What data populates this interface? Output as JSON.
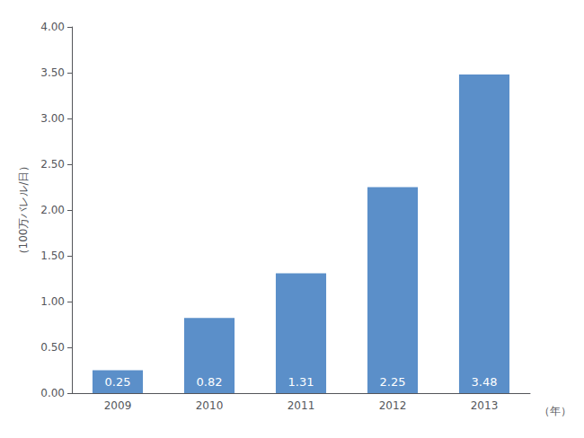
{
  "chart_data": {
    "type": "bar",
    "categories": [
      "2009",
      "2010",
      "2011",
      "2012",
      "2013"
    ],
    "values": [
      0.25,
      0.82,
      1.31,
      2.25,
      3.48
    ],
    "color": "#5b8fc9",
    "ylabel": "（100万バレル/日）",
    "xlabel": "（年）",
    "ylim": [
      0,
      4.0
    ],
    "yticks": [
      {
        "value": 0.0,
        "label": "0.00"
      },
      {
        "value": 0.5,
        "label": "0.50"
      },
      {
        "value": 1.0,
        "label": "1.00"
      },
      {
        "value": 1.5,
        "label": "1.50"
      },
      {
        "value": 2.0,
        "label": "2.00"
      },
      {
        "value": 2.5,
        "label": "2.50"
      },
      {
        "value": 3.0,
        "label": "3.00"
      },
      {
        "value": 3.5,
        "label": "3.50"
      },
      {
        "value": 4.0,
        "label": "4.00"
      }
    ],
    "grid": false,
    "data_labels": true
  }
}
